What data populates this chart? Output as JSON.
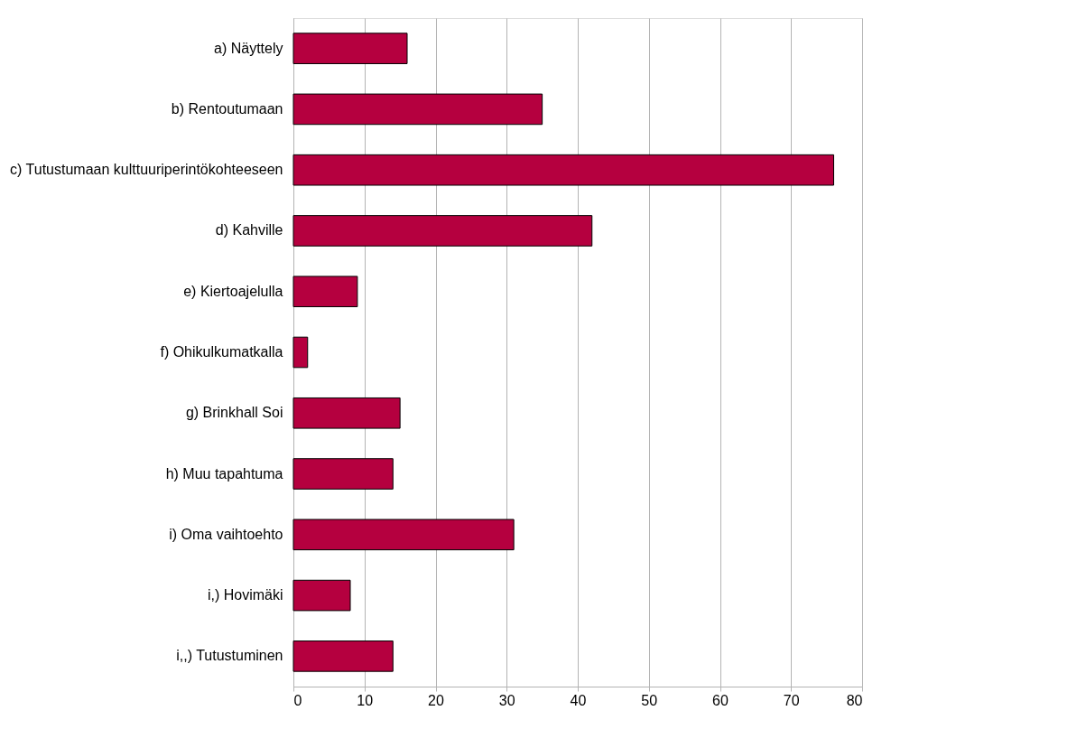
{
  "chart_data": {
    "type": "bar",
    "orientation": "horizontal",
    "categories": [
      "a) Näyttely",
      "b) Rentoutumaan",
      "c) Tutustumaan kulttuuriperintökohteeseen",
      "d) Kahville",
      "e) Kiertoajelulla",
      "f) Ohikulkumatkalla",
      "g) Brinkhall Soi",
      "h) Muu tapahtuma",
      "i) Oma vaihtoehto",
      "i,) Hovimäki ",
      "i,,) Tutustuminen"
    ],
    "values": [
      16,
      35,
      76,
      42,
      9,
      2,
      15,
      14,
      31,
      8,
      14
    ],
    "color": "#b5003f",
    "xlim": [
      0,
      80
    ],
    "xticks": [
      0,
      10,
      20,
      30,
      40,
      50,
      60,
      70,
      80
    ],
    "grid": "x",
    "legend": false
  }
}
